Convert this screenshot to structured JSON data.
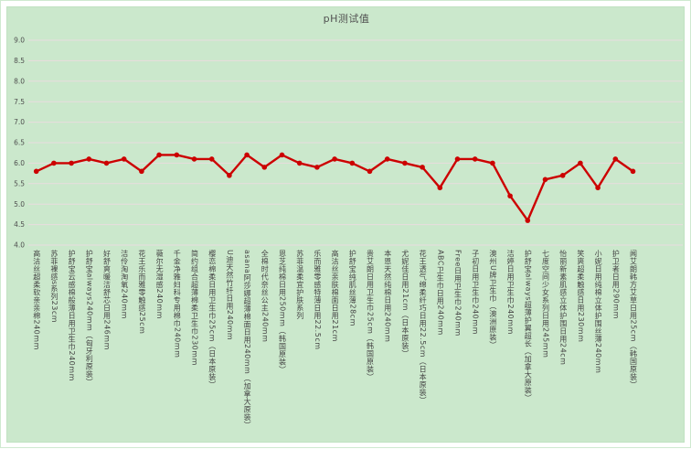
{
  "window": {
    "background": "#ffffff",
    "panel_background": "#cbe8cc"
  },
  "colors": {
    "series": "#cc0000",
    "gridline": "#e9dcdf",
    "title_text": "#515151",
    "tick_text": "#4f4f4f",
    "xlabel_text": "#454545",
    "panel_border": "#c0e1c1"
  },
  "chart_data": {
    "type": "line",
    "title": "pH测试值",
    "xlabel": "",
    "ylabel": "",
    "ylim": [
      4.0,
      9.0
    ],
    "ytick_step": 0.5,
    "ytick_labels": [
      "4.0",
      "4.5",
      "5.0",
      "5.5",
      "6.0",
      "6.5",
      "7.0",
      "7.5",
      "8.0",
      "8.5",
      "9.0"
    ],
    "grid": true,
    "legend": "none",
    "marker": "circle",
    "categories": [
      "高洁丝超柔软亲亲棉240mm",
      "苏菲裸感s系列23cm",
      "护舒宝云感棉般薄日用卫生巾240mm",
      "护舒宝always240mm（匈牙利原装）",
      "好舒爽暖洁舒芯日用246mm",
      "洁伶淘淘氧240mm",
      "花王乐而雅零触感25cm",
      "薇尔无湿感240mm",
      "千金净雅妇科专用棉巾240mm",
      "简约组合超薄棉柔卫生巾230mm",
      "樱恋棉柔日用卫生巾25cm（日本原装）",
      "U迪天然竹纤日用240mm",
      "asana阿莎娜超薄棉面日用240mm（加拿大原装）",
      "全棉时代奈丝公主240mm",
      "恩芝纯棉日用250mm（韩国原装）",
      "苏菲温柔宜护肤系列",
      "乐而雅零感特薄日用22.5cm",
      "高洁丝亲肤棉面日用21cm",
      "护舒宝纯肌丝薄28cm",
      "贵艾朗日用卫生巾25cm（韩国原装）",
      "本恩天然纯棉日用240mm",
      "尤妮佳日用21cm（日本原装）",
      "花王透气绵柔纤巧日用22.5cm（日本原装）",
      "ABC卫生巾日用240mm",
      "Free日用卫生巾240mm",
      "子初日用卫生巾240mm",
      "澳州U牌卫生巾（澳洲原装）",
      "洁婷日用卫生巾240mm",
      "护舒宝always超薄护翼超长（加拿大原装）",
      "七度空间少女系列日用245mm",
      "怡丽新素肌感立体护围日用24cm",
      "笑爽超柔触感日用230mm",
      "小妮日用纯棉立体护围丝薄240mm",
      "护卫者日用290mm",
      "闻艾朗韩方艾草日用25cm（韩国原装）"
    ],
    "series": [
      {
        "name": "pH测试值",
        "values": [
          5.8,
          6.0,
          6.0,
          6.1,
          6.0,
          6.1,
          5.8,
          6.2,
          6.2,
          6.1,
          6.1,
          5.7,
          6.2,
          5.9,
          6.2,
          6.0,
          5.9,
          6.1,
          6.0,
          5.8,
          6.1,
          6.0,
          5.9,
          5.4,
          6.1,
          6.1,
          6.0,
          5.2,
          4.6,
          5.6,
          5.7,
          6.0,
          5.4,
          6.1,
          5.8
        ]
      }
    ]
  }
}
